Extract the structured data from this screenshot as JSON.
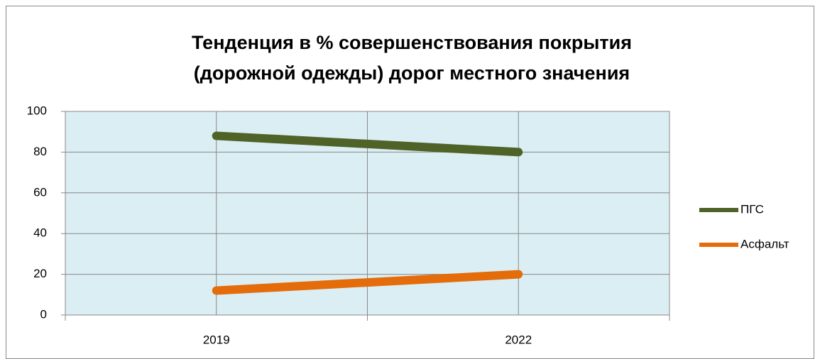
{
  "chart_data": {
    "type": "line",
    "title": [
      "Тенденция в % совершенствования покрытия",
      "(дорожной одежды) дорог местного значения"
    ],
    "categories": [
      "2019",
      "2022"
    ],
    "series": [
      {
        "name": "ПГС",
        "color": "#4f6228",
        "values": [
          88,
          80
        ]
      },
      {
        "name": "Асфальт",
        "color": "#e46c0a",
        "values": [
          12,
          20
        ]
      }
    ],
    "ylim": [
      0,
      100
    ],
    "yticks": [
      0,
      20,
      40,
      60,
      80,
      100
    ],
    "grid": true,
    "legend": "right"
  }
}
